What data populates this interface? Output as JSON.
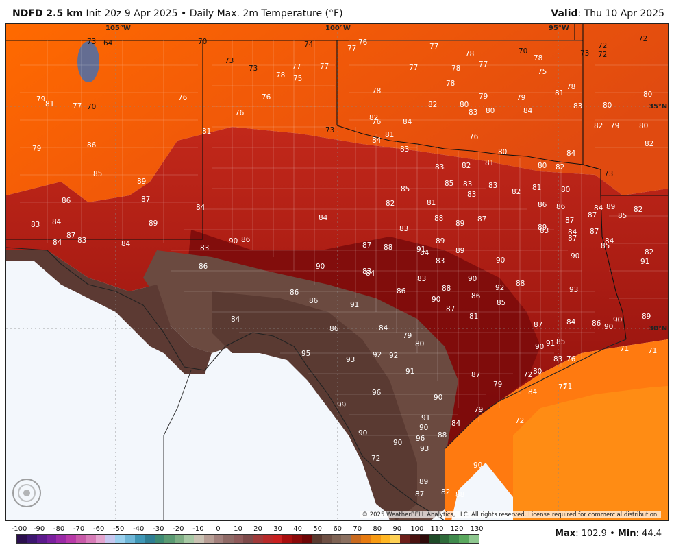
{
  "header": {
    "model": "NDFD 2.5 km",
    "init": "Init 20z 9 Apr 2025",
    "bullet": "•",
    "product": "Daily Max. 2m Temperature (°F)",
    "valid_label": "Valid",
    "valid_value": ": Thu 10 Apr 2025"
  },
  "grid_labels": {
    "lon_105": "105°W",
    "lon_100": "100°W",
    "lon_95": "95°W",
    "lat_35": "35°N",
    "lat_30": "30°N"
  },
  "copyright": "© 2025 WeatherBELL Analytics, LLC. All rights reserved. License required for commercial distribution.",
  "logo_text": "WeatherBELL",
  "colorbar": {
    "ticks": [
      "-100",
      "-90",
      "-80",
      "-70",
      "-60",
      "-50",
      "-40",
      "-30",
      "-20",
      "-10",
      "0",
      "10",
      "20",
      "30",
      "40",
      "50",
      "60",
      "70",
      "80",
      "90",
      "100",
      "110",
      "120",
      "130"
    ],
    "colors": [
      "#2b0f4e",
      "#3c1670",
      "#5b1a8c",
      "#7a1f9e",
      "#9a2aa6",
      "#b83aa8",
      "#c85aa9",
      "#d77cb8",
      "#e4a4cf",
      "#c7c7ef",
      "#9ad0ee",
      "#6fb7d8",
      "#3f97b6",
      "#2e7e93",
      "#3d8a73",
      "#5a9a72",
      "#7eae84",
      "#a7c8a4",
      "#c9c1b2",
      "#b79e95",
      "#a2807c",
      "#8f6a66",
      "#8e5a5a",
      "#7d4a4a",
      "#a03a3a",
      "#b82a2a",
      "#c92020",
      "#a80e0e",
      "#8a0a0a",
      "#6e0606",
      "#5a3a30",
      "#6e5044",
      "#7e6354",
      "#8b7060",
      "#c86a1f",
      "#e67a10",
      "#f79a12",
      "#ffb623",
      "#ffd154",
      "#6d1f1a",
      "#4a1210",
      "#2e0a0a",
      "#1e4a28",
      "#2e6a3a",
      "#3f8a4c",
      "#5aa85e",
      "#8fc890"
    ]
  },
  "max_label": "Max",
  "max_value": "102.9",
  "min_label": "Min",
  "min_value": "44.4",
  "temps": [
    {
      "t": "73",
      "d": 1
    },
    {
      "t": "64",
      "d": 1
    },
    {
      "t": "70",
      "d": 1
    },
    {
      "t": "74",
      "d": 1
    },
    {
      "t": "77"
    },
    {
      "t": "76"
    },
    {
      "t": "77"
    },
    {
      "t": "72",
      "d": 1
    },
    {
      "t": "72",
      "d": 1
    },
    {
      "t": "78"
    },
    {
      "t": "70",
      "d": 1
    },
    {
      "t": "73",
      "d": 1
    },
    {
      "t": "73",
      "d": 1
    },
    {
      "t": "78"
    },
    {
      "t": "77"
    },
    {
      "t": "77"
    },
    {
      "t": "75"
    },
    {
      "t": "78"
    },
    {
      "t": "77"
    },
    {
      "t": "78"
    },
    {
      "t": "77"
    },
    {
      "t": "75"
    },
    {
      "t": "73",
      "d": 1
    },
    {
      "t": "72",
      "d": 1
    },
    {
      "t": "79"
    },
    {
      "t": "81"
    },
    {
      "t": "77"
    },
    {
      "t": "70",
      "d": 1
    },
    {
      "t": "76"
    },
    {
      "t": "76"
    },
    {
      "t": "78"
    },
    {
      "t": "78"
    },
    {
      "t": "80"
    },
    {
      "t": "81"
    },
    {
      "t": "80"
    },
    {
      "t": "79"
    },
    {
      "t": "79"
    },
    {
      "t": "78"
    },
    {
      "t": "76"
    },
    {
      "t": "80"
    },
    {
      "t": "83"
    },
    {
      "t": "76"
    },
    {
      "t": "82"
    },
    {
      "t": "83"
    },
    {
      "t": "84"
    },
    {
      "t": "84"
    },
    {
      "t": "82"
    },
    {
      "t": "80"
    },
    {
      "t": "82"
    },
    {
      "t": "79"
    },
    {
      "t": "80"
    },
    {
      "t": "82"
    },
    {
      "t": "81"
    },
    {
      "t": "79"
    },
    {
      "t": "86"
    },
    {
      "t": "73",
      "d": 1
    },
    {
      "t": "76"
    },
    {
      "t": "84"
    },
    {
      "t": "81"
    },
    {
      "t": "83"
    },
    {
      "t": "83"
    },
    {
      "t": "82"
    },
    {
      "t": "81"
    },
    {
      "t": "80"
    },
    {
      "t": "80"
    },
    {
      "t": "82"
    },
    {
      "t": "84"
    },
    {
      "t": "73",
      "d": 1
    },
    {
      "t": "85"
    },
    {
      "t": "89"
    },
    {
      "t": "85"
    },
    {
      "t": "85"
    },
    {
      "t": "83"
    },
    {
      "t": "83"
    },
    {
      "t": "82"
    },
    {
      "t": "81"
    },
    {
      "t": "80"
    },
    {
      "t": "82"
    },
    {
      "t": "86"
    },
    {
      "t": "87"
    },
    {
      "t": "84"
    },
    {
      "t": "84"
    },
    {
      "t": "82"
    },
    {
      "t": "81"
    },
    {
      "t": "83"
    },
    {
      "t": "88"
    },
    {
      "t": "89"
    },
    {
      "t": "87"
    },
    {
      "t": "83"
    },
    {
      "t": "86"
    },
    {
      "t": "86"
    },
    {
      "t": "87"
    },
    {
      "t": "87"
    },
    {
      "t": "84"
    },
    {
      "t": "85"
    },
    {
      "t": "83"
    },
    {
      "t": "84"
    },
    {
      "t": "84"
    },
    {
      "t": "87"
    },
    {
      "t": "89"
    },
    {
      "t": "83"
    },
    {
      "t": "90"
    },
    {
      "t": "86"
    },
    {
      "t": "87"
    },
    {
      "t": "88"
    },
    {
      "t": "89"
    },
    {
      "t": "84"
    },
    {
      "t": "83"
    },
    {
      "t": "87"
    },
    {
      "t": "82"
    },
    {
      "t": "84"
    },
    {
      "t": "84"
    },
    {
      "t": "89"
    },
    {
      "t": "90"
    },
    {
      "t": "88"
    },
    {
      "t": "87"
    },
    {
      "t": "84"
    },
    {
      "t": "83"
    },
    {
      "t": "83"
    },
    {
      "t": "91"
    },
    {
      "t": "89"
    },
    {
      "t": "89"
    },
    {
      "t": "90"
    },
    {
      "t": "85"
    },
    {
      "t": "90"
    },
    {
      "t": "91"
    },
    {
      "t": "90"
    },
    {
      "t": "86"
    },
    {
      "t": "84"
    },
    {
      "t": "83"
    },
    {
      "t": "83"
    },
    {
      "t": "86"
    },
    {
      "t": "88"
    },
    {
      "t": "92"
    },
    {
      "t": "93"
    },
    {
      "t": "86"
    },
    {
      "t": "86"
    },
    {
      "t": "84"
    },
    {
      "t": "91"
    },
    {
      "t": "90"
    },
    {
      "t": "87"
    },
    {
      "t": "86"
    },
    {
      "t": "85"
    },
    {
      "t": "86"
    },
    {
      "t": "90"
    },
    {
      "t": "90"
    },
    {
      "t": "89"
    },
    {
      "t": "86"
    },
    {
      "t": "84"
    },
    {
      "t": "81"
    },
    {
      "t": "79"
    },
    {
      "t": "80"
    },
    {
      "t": "87"
    },
    {
      "t": "90"
    },
    {
      "t": "91"
    },
    {
      "t": "85"
    },
    {
      "t": "83"
    },
    {
      "t": "95"
    },
    {
      "t": "92"
    },
    {
      "t": "92"
    },
    {
      "t": "93"
    },
    {
      "t": "71"
    },
    {
      "t": "71"
    },
    {
      "t": "76"
    },
    {
      "t": "84"
    },
    {
      "t": "80"
    },
    {
      "t": "91"
    },
    {
      "t": "72"
    },
    {
      "t": "87"
    },
    {
      "t": "79"
    },
    {
      "t": "84"
    },
    {
      "t": "71"
    },
    {
      "t": "72"
    },
    {
      "t": "96"
    },
    {
      "t": "90"
    },
    {
      "t": "99"
    },
    {
      "t": "79"
    },
    {
      "t": "72"
    },
    {
      "t": "91"
    },
    {
      "t": "84"
    },
    {
      "t": "90"
    },
    {
      "t": "88"
    },
    {
      "t": "96"
    },
    {
      "t": "90"
    },
    {
      "t": "90"
    },
    {
      "t": "93"
    },
    {
      "t": "72"
    },
    {
      "t": "90"
    },
    {
      "t": "89"
    },
    {
      "t": "87"
    },
    {
      "t": "82"
    },
    {
      "t": "88"
    }
  ]
}
